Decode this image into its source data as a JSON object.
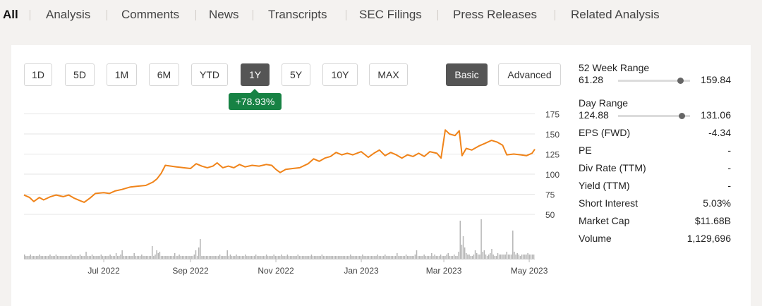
{
  "tabs": [
    {
      "label": "All",
      "active": true
    },
    {
      "label": "Analysis"
    },
    {
      "label": "Comments"
    },
    {
      "label": "News"
    },
    {
      "label": "Transcripts"
    },
    {
      "label": "SEC Filings"
    },
    {
      "label": "Press Releases"
    },
    {
      "label": "Related Analysis"
    }
  ],
  "range_buttons": [
    "1D",
    "5D",
    "1M",
    "6M",
    "YTD",
    "1Y",
    "5Y",
    "10Y",
    "MAX"
  ],
  "active_range": "1Y",
  "mode_buttons": [
    "Basic",
    "Advanced"
  ],
  "active_mode": "Basic",
  "change_badge": "+78.93%",
  "colors": {
    "price_line": "#f0841a",
    "volume_bar": "#b5b5b5",
    "badge": "#178244",
    "active_button": "#555555"
  },
  "stats": {
    "week52": {
      "label": "52 Week Range",
      "low": "61.28",
      "high": "159.84",
      "position": 0.86
    },
    "day": {
      "label": "Day Range",
      "low": "124.88",
      "high": "131.06",
      "position": 0.88
    },
    "rows": [
      {
        "label": "EPS (FWD)",
        "value": "-4.34"
      },
      {
        "label": "PE",
        "value": "-"
      },
      {
        "label": "Div Rate (TTM)",
        "value": "-"
      },
      {
        "label": "Yield (TTM)",
        "value": "-"
      },
      {
        "label": "Short Interest",
        "value": "5.03%"
      },
      {
        "label": "Market Cap",
        "value": "$11.68B"
      },
      {
        "label": "Volume",
        "value": "1,129,696"
      }
    ]
  },
  "chart_data": {
    "type": "line",
    "x_ticks": [
      "Jul 2022",
      "Sep 2022",
      "Nov 2022",
      "Jan 2023",
      "Mar 2023",
      "May 2023"
    ],
    "x_tick_dates": [
      "2022-07-01",
      "2022-09-01",
      "2022-11-01",
      "2023-01-01",
      "2023-03-01",
      "2023-05-01"
    ],
    "x_range": [
      "2022-05-05",
      "2023-05-05"
    ],
    "y_ticks": [
      175,
      150,
      125,
      100,
      75,
      50
    ],
    "ylim": [
      40,
      180
    ],
    "y_axis_side": "right",
    "grid": true,
    "price_series": [
      {
        "date": "2022-05-05",
        "value": 74
      },
      {
        "date": "2022-05-09",
        "value": 71
      },
      {
        "date": "2022-05-12",
        "value": 66
      },
      {
        "date": "2022-05-16",
        "value": 71
      },
      {
        "date": "2022-05-19",
        "value": 68
      },
      {
        "date": "2022-05-24",
        "value": 72
      },
      {
        "date": "2022-05-28",
        "value": 74
      },
      {
        "date": "2022-06-02",
        "value": 72
      },
      {
        "date": "2022-06-06",
        "value": 74
      },
      {
        "date": "2022-06-10",
        "value": 70
      },
      {
        "date": "2022-06-14",
        "value": 67
      },
      {
        "date": "2022-06-17",
        "value": 65
      },
      {
        "date": "2022-06-21",
        "value": 70
      },
      {
        "date": "2022-06-25",
        "value": 76
      },
      {
        "date": "2022-07-01",
        "value": 77
      },
      {
        "date": "2022-07-05",
        "value": 76
      },
      {
        "date": "2022-07-09",
        "value": 79
      },
      {
        "date": "2022-07-14",
        "value": 81
      },
      {
        "date": "2022-07-20",
        "value": 84
      },
      {
        "date": "2022-07-25",
        "value": 85
      },
      {
        "date": "2022-07-31",
        "value": 86
      },
      {
        "date": "2022-08-05",
        "value": 90
      },
      {
        "date": "2022-08-08",
        "value": 94
      },
      {
        "date": "2022-08-11",
        "value": 101
      },
      {
        "date": "2022-08-14",
        "value": 111
      },
      {
        "date": "2022-08-18",
        "value": 110
      },
      {
        "date": "2022-08-22",
        "value": 109
      },
      {
        "date": "2022-08-27",
        "value": 108
      },
      {
        "date": "2022-09-01",
        "value": 107
      },
      {
        "date": "2022-09-05",
        "value": 113
      },
      {
        "date": "2022-09-09",
        "value": 110
      },
      {
        "date": "2022-09-13",
        "value": 108
      },
      {
        "date": "2022-09-17",
        "value": 110
      },
      {
        "date": "2022-09-20",
        "value": 114
      },
      {
        "date": "2022-09-24",
        "value": 108
      },
      {
        "date": "2022-09-28",
        "value": 110
      },
      {
        "date": "2022-10-02",
        "value": 108
      },
      {
        "date": "2022-10-06",
        "value": 112
      },
      {
        "date": "2022-10-10",
        "value": 109
      },
      {
        "date": "2022-10-15",
        "value": 111
      },
      {
        "date": "2022-10-20",
        "value": 110
      },
      {
        "date": "2022-10-25",
        "value": 112
      },
      {
        "date": "2022-10-29",
        "value": 111
      },
      {
        "date": "2022-11-01",
        "value": 106
      },
      {
        "date": "2022-11-04",
        "value": 102
      },
      {
        "date": "2022-11-08",
        "value": 106
      },
      {
        "date": "2022-11-13",
        "value": 107
      },
      {
        "date": "2022-11-18",
        "value": 108
      },
      {
        "date": "2022-11-24",
        "value": 113
      },
      {
        "date": "2022-11-28",
        "value": 119
      },
      {
        "date": "2022-12-02",
        "value": 116
      },
      {
        "date": "2022-12-06",
        "value": 120
      },
      {
        "date": "2022-12-10",
        "value": 122
      },
      {
        "date": "2022-12-14",
        "value": 127
      },
      {
        "date": "2022-12-18",
        "value": 124
      },
      {
        "date": "2022-12-22",
        "value": 126
      },
      {
        "date": "2022-12-26",
        "value": 124
      },
      {
        "date": "2023-01-01",
        "value": 128
      },
      {
        "date": "2023-01-06",
        "value": 121
      },
      {
        "date": "2023-01-10",
        "value": 126
      },
      {
        "date": "2023-01-14",
        "value": 130
      },
      {
        "date": "2023-01-18",
        "value": 123
      },
      {
        "date": "2023-01-22",
        "value": 127
      },
      {
        "date": "2023-01-26",
        "value": 124
      },
      {
        "date": "2023-01-30",
        "value": 120
      },
      {
        "date": "2023-02-03",
        "value": 124
      },
      {
        "date": "2023-02-07",
        "value": 122
      },
      {
        "date": "2023-02-11",
        "value": 126
      },
      {
        "date": "2023-02-15",
        "value": 122
      },
      {
        "date": "2023-02-19",
        "value": 128
      },
      {
        "date": "2023-02-24",
        "value": 126
      },
      {
        "date": "2023-02-27",
        "value": 120
      },
      {
        "date": "2023-03-02",
        "value": 155
      },
      {
        "date": "2023-03-05",
        "value": 150
      },
      {
        "date": "2023-03-09",
        "value": 148
      },
      {
        "date": "2023-03-12",
        "value": 154
      },
      {
        "date": "2023-03-14",
        "value": 123
      },
      {
        "date": "2023-03-17",
        "value": 132
      },
      {
        "date": "2023-03-21",
        "value": 130
      },
      {
        "date": "2023-03-26",
        "value": 135
      },
      {
        "date": "2023-03-30",
        "value": 138
      },
      {
        "date": "2023-04-04",
        "value": 142
      },
      {
        "date": "2023-04-08",
        "value": 140
      },
      {
        "date": "2023-04-12",
        "value": 136
      },
      {
        "date": "2023-04-15",
        "value": 124
      },
      {
        "date": "2023-04-20",
        "value": 125
      },
      {
        "date": "2023-04-25",
        "value": 124
      },
      {
        "date": "2023-04-29",
        "value": 123
      },
      {
        "date": "2023-05-03",
        "value": 126
      },
      {
        "date": "2023-05-05",
        "value": 131
      }
    ],
    "volume_series": [
      3,
      2,
      2,
      2,
      3,
      2,
      2,
      2,
      2,
      2,
      3,
      2,
      2,
      2,
      2,
      2,
      2,
      3,
      2,
      2,
      2,
      3,
      2,
      2,
      2,
      2,
      2,
      2,
      2,
      2,
      2,
      3,
      2,
      2,
      2,
      2,
      2,
      3,
      2,
      2,
      2,
      5,
      2,
      2,
      2,
      3,
      2,
      2,
      2,
      2,
      2,
      3,
      2,
      2,
      2,
      2,
      2,
      3,
      2,
      2,
      2,
      4,
      2,
      2,
      3,
      6,
      2,
      2,
      2,
      2,
      2,
      2,
      2,
      4,
      2,
      2,
      2,
      2,
      3,
      2,
      2,
      2,
      2,
      2,
      2,
      9,
      2,
      3,
      6,
      4,
      5,
      2,
      2,
      2,
      2,
      2,
      2,
      2,
      2,
      2,
      4,
      2,
      2,
      3,
      2,
      2,
      2,
      2,
      2,
      2,
      2,
      2,
      2,
      3,
      6,
      2,
      8,
      14,
      2,
      2,
      2,
      2,
      2,
      2,
      2,
      2,
      2,
      2,
      2,
      2,
      3,
      2,
      2,
      2,
      2,
      6,
      2,
      3,
      2,
      2,
      2,
      3,
      2,
      2,
      2,
      2,
      2,
      3,
      2,
      2,
      2,
      2,
      2,
      2,
      3,
      2,
      2,
      2,
      2,
      2,
      2,
      3,
      2,
      2,
      2,
      2,
      3,
      2,
      2,
      2,
      2,
      3,
      2,
      2,
      2,
      3,
      2,
      2,
      2,
      2,
      2,
      2,
      3,
      2,
      2,
      2,
      2,
      2,
      2,
      2,
      2,
      3,
      2,
      2,
      2,
      2,
      2,
      2,
      3,
      2,
      2,
      2,
      2,
      2,
      2,
      2,
      2,
      2,
      2,
      2,
      2,
      2,
      2,
      2,
      2,
      2,
      2,
      3,
      2,
      2,
      2,
      2,
      2,
      2,
      2,
      3,
      2,
      2,
      2,
      2,
      2,
      2,
      2,
      2,
      2,
      3,
      2,
      2,
      2,
      2,
      3,
      2,
      2,
      2,
      2,
      2,
      2,
      2,
      4,
      2,
      2,
      2,
      2,
      2,
      3,
      2,
      2,
      2,
      2,
      2,
      3,
      6,
      2,
      2,
      2,
      2,
      3,
      2,
      2,
      2,
      2,
      4,
      2,
      3,
      2,
      2,
      2,
      3,
      2,
      2,
      2,
      3,
      4,
      2,
      2,
      2,
      3,
      2,
      2,
      5,
      27,
      10,
      16,
      8,
      4,
      3,
      3,
      2,
      2,
      3,
      6,
      4,
      3,
      3,
      28,
      5,
      6,
      3,
      2,
      3,
      4,
      7,
      3,
      2,
      2,
      4,
      3,
      3,
      3,
      3,
      3,
      5,
      3,
      3,
      3,
      20,
      5,
      3,
      4,
      3,
      2,
      3,
      3,
      3,
      3,
      4,
      3,
      3,
      3,
      3
    ],
    "volume_scale_max": 30
  }
}
